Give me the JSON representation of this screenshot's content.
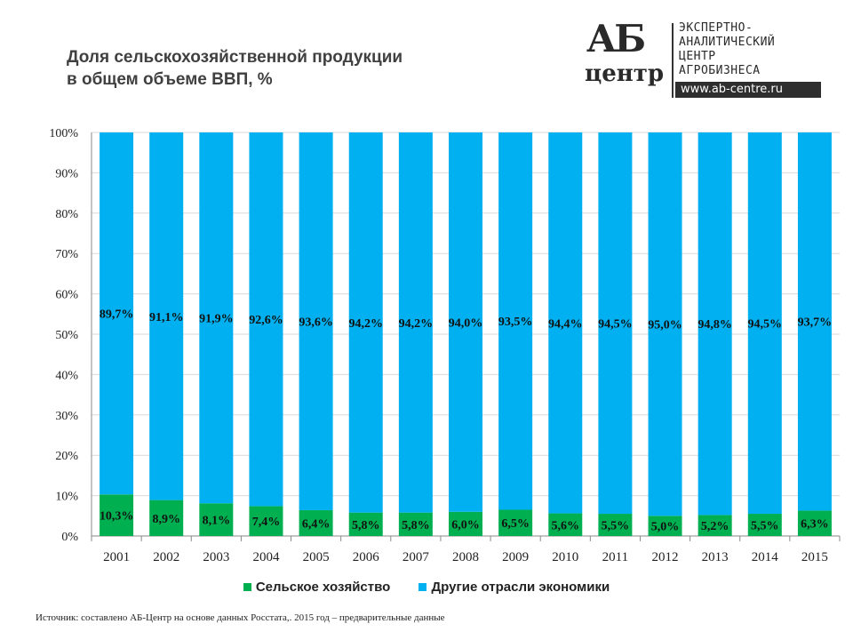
{
  "header": {
    "title_line1": "Доля сельскохозяйственной продукции",
    "title_line2": "в общем объеме ВВП, %"
  },
  "logo": {
    "mark": "АБ",
    "mark_sub": "центр",
    "line1": "ЭКСПЕРТНО-",
    "line2": "АНАЛИТИЧЕСКИЙ",
    "line3": "ЦЕНТР",
    "line4": "АГРОБИЗНЕСА",
    "url": "www.ab-centre.ru"
  },
  "source": "Источник: составлено АБ-Центр на основе данных Росстата,. 2015 год – предварительные данные",
  "chart_data": {
    "type": "bar",
    "stacked": "percent",
    "categories": [
      "2001",
      "2002",
      "2003",
      "2004",
      "2005",
      "2006",
      "2007",
      "2008",
      "2009",
      "2010",
      "2011",
      "2012",
      "2013",
      "2014",
      "2015"
    ],
    "series": [
      {
        "name": "Сельское хозяйство",
        "color": "#00B050",
        "values": [
          10.3,
          8.9,
          8.1,
          7.4,
          6.4,
          5.8,
          5.8,
          6.0,
          6.5,
          5.6,
          5.5,
          5.0,
          5.2,
          5.5,
          6.3
        ],
        "labels": [
          "10,3%",
          "8,9%",
          "8,1%",
          "7,4%",
          "6,4%",
          "5,8%",
          "5,8%",
          "6,0%",
          "6,5%",
          "5,6%",
          "5,5%",
          "5,0%",
          "5,2%",
          "5,5%",
          "6,3%"
        ]
      },
      {
        "name": "Другие отрасли экономики",
        "color": "#00B0F0",
        "values": [
          89.7,
          91.1,
          91.9,
          92.6,
          93.6,
          94.2,
          94.2,
          94.0,
          93.5,
          94.4,
          94.5,
          95.0,
          94.8,
          94.5,
          93.7
        ],
        "labels": [
          "89,7%",
          "91,1%",
          "91,9%",
          "92,6%",
          "93,6%",
          "94,2%",
          "94,2%",
          "94,0%",
          "93,5%",
          "94,4%",
          "94,5%",
          "95,0%",
          "94,8%",
          "94,5%",
          "93,7%"
        ]
      }
    ],
    "yticks": [
      "0%",
      "10%",
      "20%",
      "30%",
      "40%",
      "50%",
      "60%",
      "70%",
      "80%",
      "90%",
      "100%"
    ],
    "ylim": [
      0,
      100
    ],
    "grid": true,
    "legend": "bottom"
  }
}
